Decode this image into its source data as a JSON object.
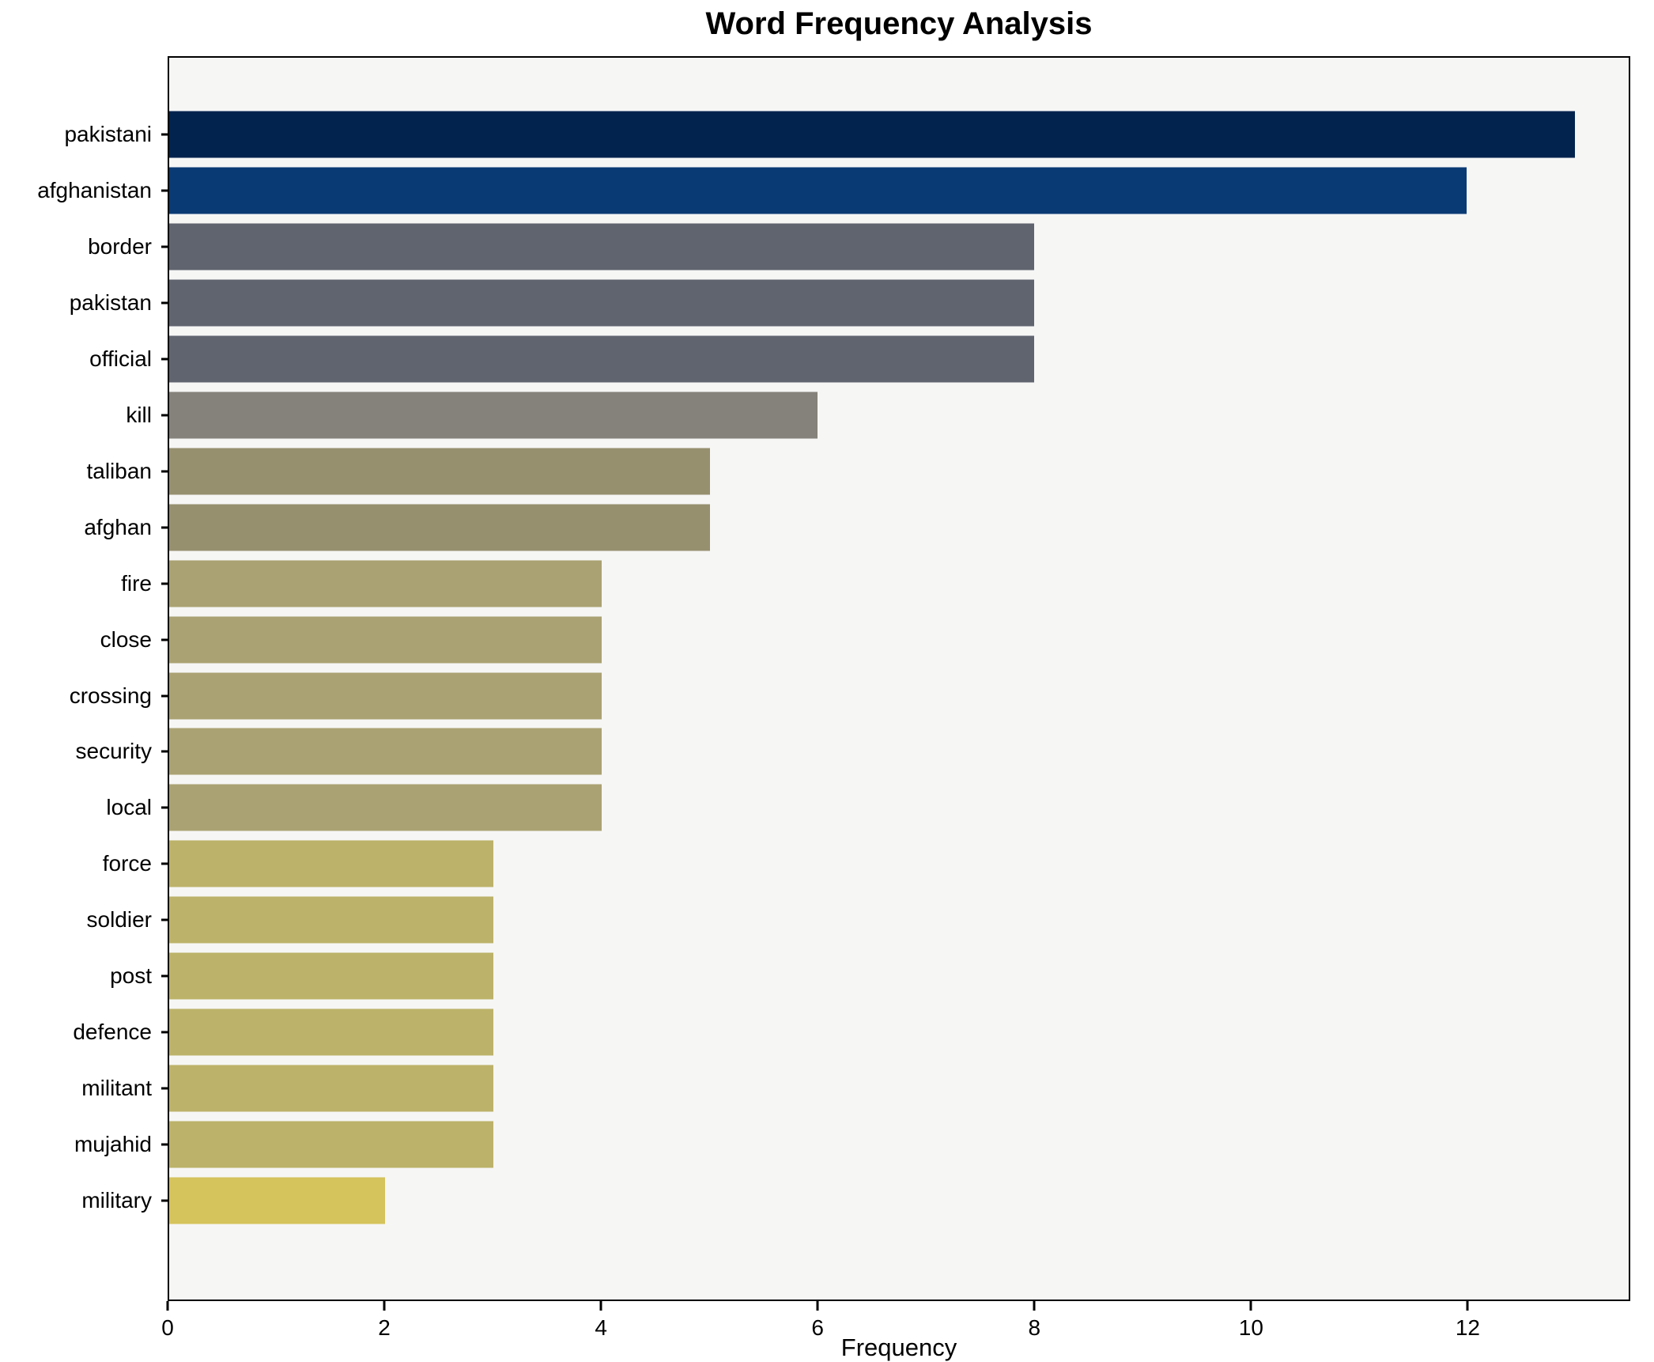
{
  "title": "Word Frequency Analysis",
  "xlabel": "Frequency",
  "chart_data": {
    "type": "bar",
    "orientation": "horizontal",
    "title": "Word Frequency Analysis",
    "xlabel": "Frequency",
    "ylabel": "",
    "categories": [
      "pakistani",
      "afghanistan",
      "border",
      "pakistan",
      "official",
      "kill",
      "taliban",
      "afghan",
      "fire",
      "close",
      "crossing",
      "security",
      "local",
      "force",
      "soldier",
      "post",
      "defence",
      "militant",
      "mujahid",
      "military"
    ],
    "values": [
      13,
      12,
      8,
      8,
      8,
      6,
      5,
      5,
      4,
      4,
      4,
      4,
      4,
      3,
      3,
      3,
      3,
      3,
      3,
      2
    ],
    "bar_colors": [
      "#02234e",
      "#0a3a74",
      "#60646f",
      "#60646f",
      "#60646f",
      "#84827a",
      "#96906f",
      "#96906f",
      "#aba273",
      "#aba273",
      "#aba273",
      "#aba273",
      "#aba273",
      "#bcb269",
      "#bcb269",
      "#bcb269",
      "#bcb269",
      "#bcb269",
      "#bcb269",
      "#d5c35c"
    ],
    "xlim": [
      0,
      13.5
    ],
    "xticks": [
      0,
      2,
      4,
      6,
      8,
      10,
      12
    ],
    "grid": false,
    "legend": null,
    "plot_bg": "#f6f6f5",
    "figure_bg": "#ffffff",
    "axis_color": "#000000"
  }
}
